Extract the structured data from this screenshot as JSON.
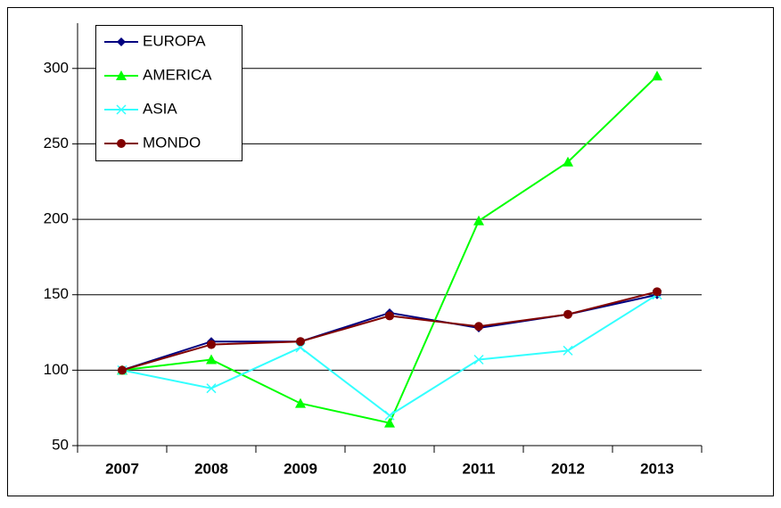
{
  "chart_data": {
    "type": "line",
    "categories": [
      "2007",
      "2008",
      "2009",
      "2010",
      "2011",
      "2012",
      "2013"
    ],
    "series": [
      {
        "name": "EUROPA",
        "color": "#000080",
        "marker": "diamond",
        "values": [
          100,
          119,
          119,
          138,
          128,
          137,
          150
        ]
      },
      {
        "name": "AMERICA",
        "color": "#00ff00",
        "marker": "triangle",
        "values": [
          100,
          107,
          78,
          65,
          199,
          238,
          295
        ]
      },
      {
        "name": "ASIA",
        "color": "#33ffff",
        "marker": "x",
        "values": [
          100,
          88,
          115,
          70,
          107,
          113,
          150
        ]
      },
      {
        "name": "MONDO",
        "color": "#800000",
        "marker": "circle",
        "values": [
          100,
          117,
          119,
          136,
          129,
          137,
          152
        ]
      }
    ],
    "ylim": [
      50,
      330
    ],
    "yticks": [
      50,
      100,
      150,
      200,
      250,
      300
    ],
    "grid": true,
    "legend": "top-left"
  }
}
